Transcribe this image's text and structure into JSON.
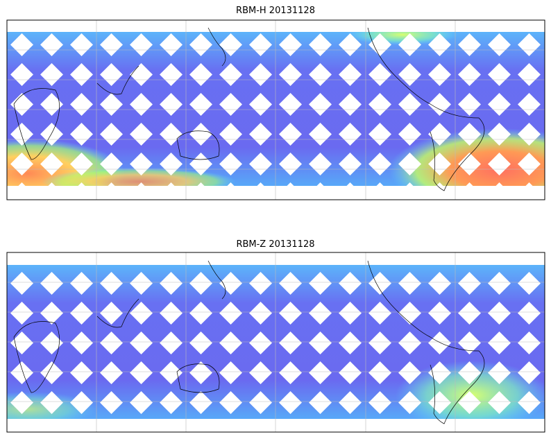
{
  "panels": [
    {
      "title": "RBM-H 20131128"
    },
    {
      "title": "RBM-Z 20131128"
    }
  ]
}
